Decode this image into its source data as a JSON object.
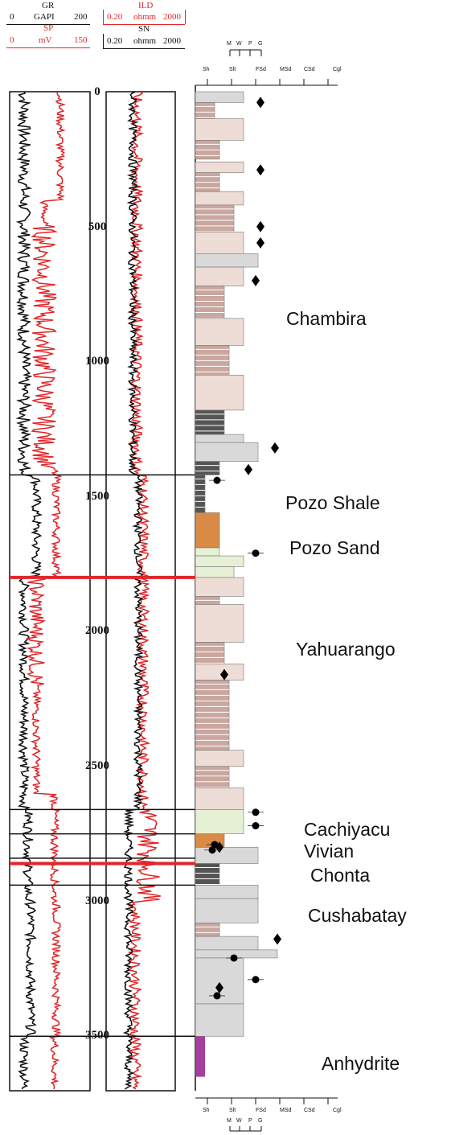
{
  "curve_header": {
    "gr": {
      "name": "GR",
      "min": "0",
      "unit": "GAPI",
      "max": "200"
    },
    "sp": {
      "name": "SP",
      "min": "0",
      "unit": "mV",
      "max": "150"
    },
    "ild": {
      "name": "ILD",
      "min": "0.20",
      "unit": "ohmm",
      "max": "2000"
    },
    "sn": {
      "name": "SN",
      "min": "0.20",
      "unit": "ohmm",
      "max": "2000"
    }
  },
  "colors": {
    "gr_sp_red": "#e0262a",
    "curve_black": "#111111",
    "mudstone_brown": "#caa79f",
    "sandstone_pink": "#eedcd6",
    "sandstone_gray": "#d9d9d9",
    "shale_dark": "#555555",
    "green_sand": "#e6f0d4",
    "orange": "#d98a45",
    "anhydrite_purple": "#a4409a"
  },
  "grain_size": {
    "top_labels": [
      "Sh",
      "Slt",
      "FSd",
      "MSd",
      "CSd",
      "Cgl"
    ],
    "bottom_labels": [
      "Sh",
      "Slt",
      "FSd",
      "MSd",
      "CSd",
      "Cgl"
    ],
    "sorting_labels": [
      "M",
      "W",
      "P",
      "G"
    ]
  },
  "depth_axis": {
    "labels": [
      "0",
      "500",
      "1000",
      "1500",
      "2000",
      "2500",
      "3000",
      "3500"
    ],
    "range": [
      0,
      3650
    ]
  },
  "formations": [
    {
      "name": "Chambira",
      "top": 0,
      "base": 1420
    },
    {
      "name": "Pozo Shale",
      "top": 1420,
      "base": 1720
    },
    {
      "name": "Pozo Sand",
      "top": 1720,
      "base": 1800
    },
    {
      "name": "Yahuarango",
      "top": 1800,
      "base": 2660
    },
    {
      "name": "Cachiyacu",
      "top": 2660,
      "base": 2760
    },
    {
      "name": "Vivian",
      "top": 2760,
      "base": 2840
    },
    {
      "name": "Chonta",
      "top": 2840,
      "base": 2940
    },
    {
      "name": "Cushabatay",
      "top": 2940,
      "base": 3500
    },
    {
      "name": "Anhydrite",
      "top": 3500,
      "base": 3650
    }
  ],
  "boundaries": [
    {
      "depth": 1420,
      "color": "black"
    },
    {
      "depth": 1800,
      "color": "red"
    },
    {
      "depth": 2660,
      "color": "black"
    },
    {
      "depth": 2750,
      "color": "black"
    },
    {
      "depth": 2840,
      "color": "black"
    },
    {
      "depth": 2860,
      "color": "red"
    },
    {
      "depth": 2940,
      "color": "black"
    },
    {
      "depth": 3500,
      "color": "black"
    }
  ],
  "sedimentary_log": {
    "beds": [
      {
        "top": 0,
        "base": 40,
        "grain": 2.0,
        "kind": "sand-gray"
      },
      {
        "top": 40,
        "base": 100,
        "grain": 0.8,
        "kind": "mud"
      },
      {
        "top": 100,
        "base": 180,
        "grain": 2.0,
        "kind": "sand"
      },
      {
        "top": 180,
        "base": 250,
        "grain": 1.0,
        "kind": "mud"
      },
      {
        "top": 260,
        "base": 300,
        "grain": 2.0,
        "kind": "sand"
      },
      {
        "top": 300,
        "base": 370,
        "grain": 1.0,
        "kind": "mud"
      },
      {
        "top": 370,
        "base": 420,
        "grain": 2.0,
        "kind": "sand"
      },
      {
        "top": 420,
        "base": 520,
        "grain": 1.6,
        "kind": "mud"
      },
      {
        "top": 520,
        "base": 600,
        "grain": 2.0,
        "kind": "sand"
      },
      {
        "top": 600,
        "base": 650,
        "grain": 2.6,
        "kind": "sand-gray"
      },
      {
        "top": 650,
        "base": 720,
        "grain": 2.0,
        "kind": "sand"
      },
      {
        "top": 720,
        "base": 840,
        "grain": 1.2,
        "kind": "mud"
      },
      {
        "top": 840,
        "base": 940,
        "grain": 2.0,
        "kind": "sand"
      },
      {
        "top": 940,
        "base": 1050,
        "grain": 1.4,
        "kind": "mud"
      },
      {
        "top": 1050,
        "base": 1180,
        "grain": 2.0,
        "kind": "sand"
      },
      {
        "top": 1180,
        "base": 1270,
        "grain": 1.2,
        "kind": "shale"
      },
      {
        "top": 1270,
        "base": 1300,
        "grain": 2.0,
        "kind": "sand-gray"
      },
      {
        "top": 1300,
        "base": 1370,
        "grain": 2.6,
        "kind": "sand-gray"
      },
      {
        "top": 1370,
        "base": 1420,
        "grain": 1.0,
        "kind": "shale"
      },
      {
        "top": 1420,
        "base": 1560,
        "grain": 0.4,
        "kind": "shale"
      },
      {
        "top": 1560,
        "base": 1690,
        "grain": 1.0,
        "kind": "orange"
      },
      {
        "top": 1690,
        "base": 1720,
        "grain": 1.0,
        "kind": "green"
      },
      {
        "top": 1720,
        "base": 1760,
        "grain": 2.0,
        "kind": "green"
      },
      {
        "top": 1760,
        "base": 1800,
        "grain": 1.6,
        "kind": "green"
      },
      {
        "top": 1800,
        "base": 1870,
        "grain": 2.0,
        "kind": "sand"
      },
      {
        "top": 1870,
        "base": 1900,
        "grain": 1.0,
        "kind": "mud"
      },
      {
        "top": 1900,
        "base": 2040,
        "grain": 2.0,
        "kind": "sand"
      },
      {
        "top": 2040,
        "base": 2120,
        "grain": 1.2,
        "kind": "mud"
      },
      {
        "top": 2120,
        "base": 2180,
        "grain": 2.0,
        "kind": "sand"
      },
      {
        "top": 2180,
        "base": 2440,
        "grain": 1.4,
        "kind": "mud"
      },
      {
        "top": 2440,
        "base": 2500,
        "grain": 2.0,
        "kind": "sand"
      },
      {
        "top": 2500,
        "base": 2580,
        "grain": 1.4,
        "kind": "mud"
      },
      {
        "top": 2580,
        "base": 2660,
        "grain": 2.0,
        "kind": "sand"
      },
      {
        "top": 2660,
        "base": 2750,
        "grain": 2.0,
        "kind": "green"
      },
      {
        "top": 2750,
        "base": 2800,
        "grain": 1.2,
        "kind": "orange"
      },
      {
        "top": 2800,
        "base": 2860,
        "grain": 2.6,
        "kind": "sand-gray"
      },
      {
        "top": 2860,
        "base": 2940,
        "grain": 1.0,
        "kind": "shale"
      },
      {
        "top": 2940,
        "base": 2990,
        "grain": 2.6,
        "kind": "sand-gray"
      },
      {
        "top": 2990,
        "base": 3080,
        "grain": 2.6,
        "kind": "sand-gray"
      },
      {
        "top": 3080,
        "base": 3130,
        "grain": 1.0,
        "kind": "mud"
      },
      {
        "top": 3130,
        "base": 3180,
        "grain": 2.6,
        "kind": "sand-gray"
      },
      {
        "top": 3180,
        "base": 3210,
        "grain": 3.4,
        "kind": "sand-gray"
      },
      {
        "top": 3210,
        "base": 3380,
        "grain": 2.0,
        "kind": "sand-gray"
      },
      {
        "top": 3380,
        "base": 3500,
        "grain": 2.0,
        "kind": "sand-gray"
      },
      {
        "top": 3500,
        "base": 3650,
        "grain": 0.4,
        "kind": "anhydrite"
      }
    ],
    "diamonds": [
      {
        "depth": 40,
        "grain": 2.7
      },
      {
        "depth": 290,
        "grain": 2.7
      },
      {
        "depth": 500,
        "grain": 2.7
      },
      {
        "depth": 560,
        "grain": 2.7
      },
      {
        "depth": 700,
        "grain": 2.5
      },
      {
        "depth": 1320,
        "grain": 3.3
      },
      {
        "depth": 1400,
        "grain": 2.2
      },
      {
        "depth": 2160,
        "grain": 1.2
      },
      {
        "depth": 2800,
        "grain": 1.0
      },
      {
        "depth": 3140,
        "grain": 3.4
      },
      {
        "depth": 3320,
        "grain": 1.0
      }
    ],
    "dots": [
      {
        "depth": 1440,
        "grain": 0.9
      },
      {
        "depth": 1710,
        "grain": 2.5
      },
      {
        "depth": 2670,
        "grain": 2.5
      },
      {
        "depth": 2720,
        "grain": 2.5
      },
      {
        "depth": 2790,
        "grain": 0.8
      },
      {
        "depth": 2810,
        "grain": 0.7
      },
      {
        "depth": 3210,
        "grain": 1.6
      },
      {
        "depth": 3290,
        "grain": 2.5
      },
      {
        "depth": 3350,
        "grain": 0.9
      }
    ]
  }
}
